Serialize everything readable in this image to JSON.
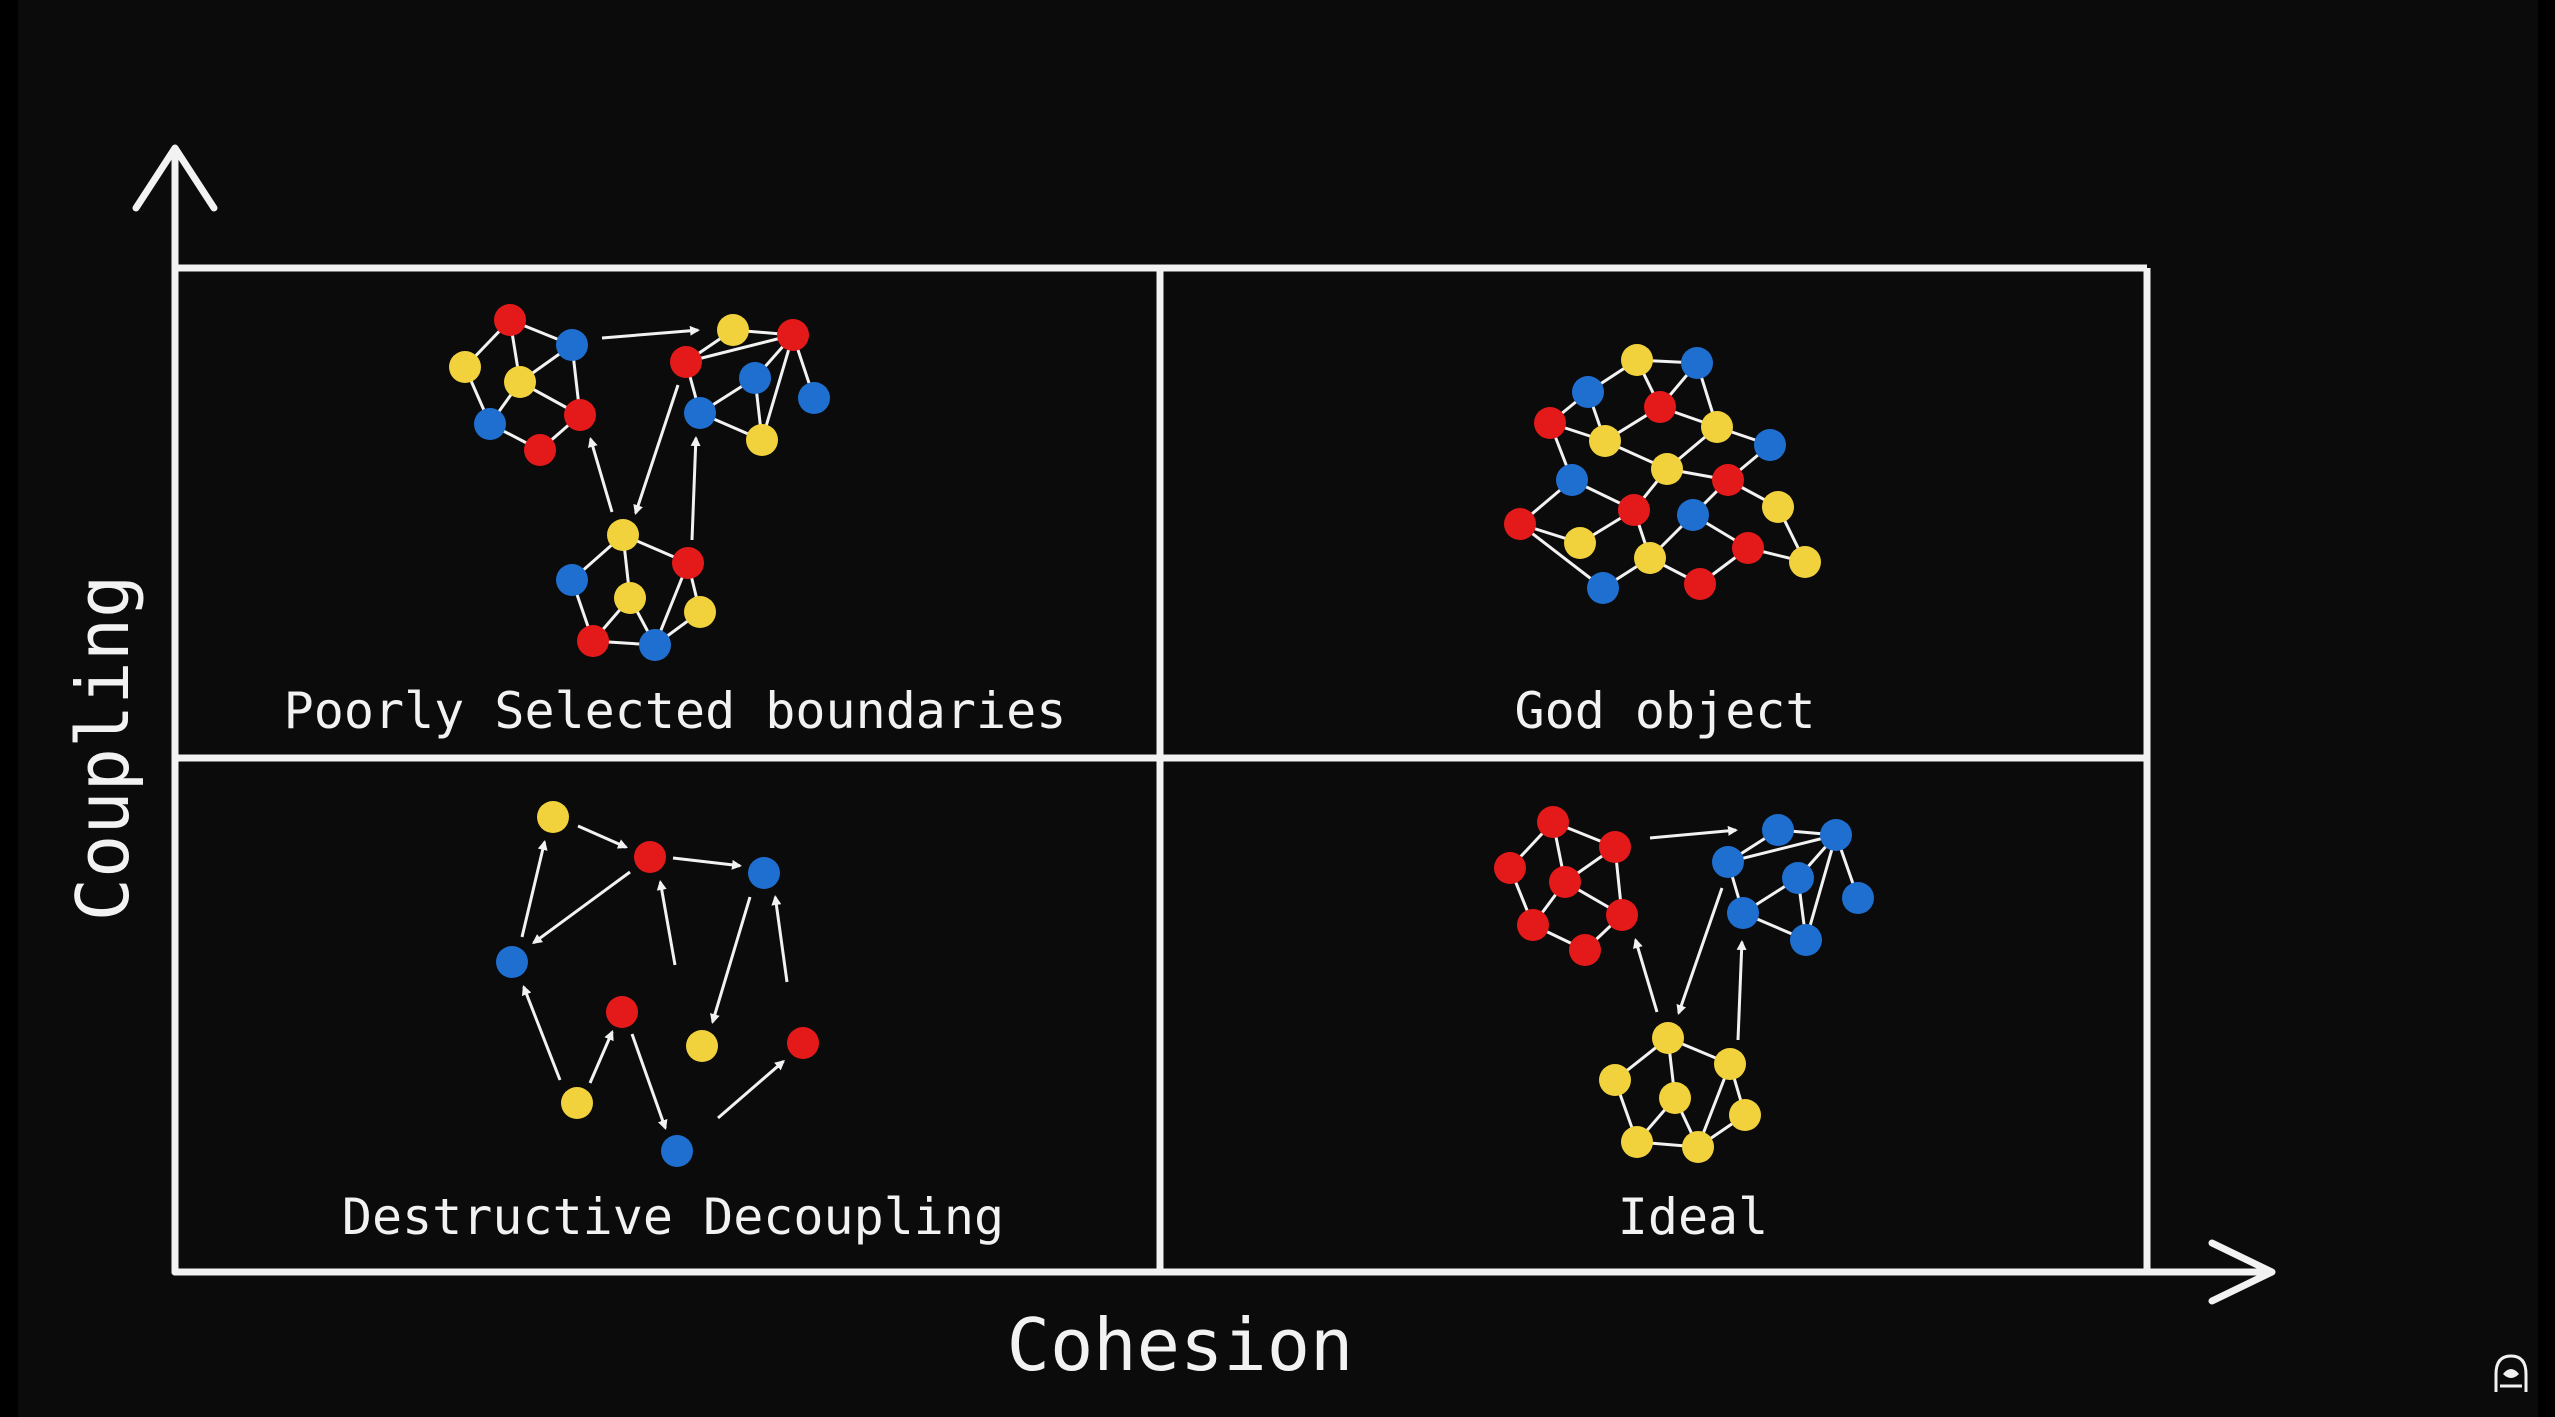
{
  "axes": {
    "x_label": "Cohesion",
    "y_label": "Coupling"
  },
  "quadrants": [
    {
      "id": "top-left",
      "label": "Poorly Selected boundaries"
    },
    {
      "id": "top-right",
      "label": "God object"
    },
    {
      "id": "bottom-left",
      "label": "Destructive Decoupling"
    },
    {
      "id": "bottom-right",
      "label": "Ideal"
    }
  ],
  "colors": {
    "background": "#0b0b0b",
    "line": "#f2f2f2",
    "red": "#e41a1a",
    "blue": "#1f6fd1",
    "yellow": "#f1d23d"
  },
  "icons": {
    "corner": "hooded-figure-icon"
  }
}
